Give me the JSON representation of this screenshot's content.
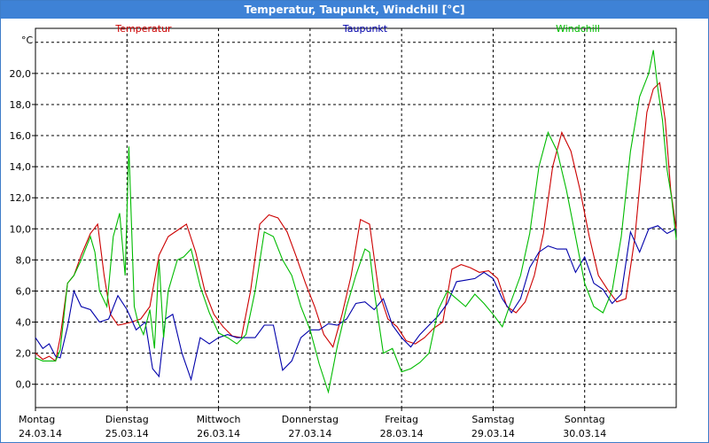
{
  "window": {
    "title": "Temperatur, Taupunkt, Windchill [°C]"
  },
  "chart_data": {
    "type": "line",
    "ylabel": "°C",
    "ylim": [
      -1.5,
      22.9
    ],
    "xlim": [
      0,
      7.0
    ],
    "grid": true,
    "legend_placement": "top",
    "yticks": [
      "0,0",
      "2,0",
      "4,0",
      "6,0",
      "8,0",
      "10,0",
      "12,0",
      "14,0",
      "16,0",
      "18,0",
      "20,0"
    ],
    "ytick_values": [
      0,
      2,
      4,
      6,
      8,
      10,
      12,
      14,
      16,
      18,
      20
    ],
    "day_ticks": [
      {
        "day": "Montag",
        "date": "24.03.14",
        "x": 0
      },
      {
        "day": "Dienstag",
        "date": "25.03.14",
        "x": 1
      },
      {
        "day": "Mittwoch",
        "date": "26.03.14",
        "x": 2
      },
      {
        "day": "Donnerstag",
        "date": "27.03.14",
        "x": 3
      },
      {
        "day": "Freitag",
        "date": "28.03.14",
        "x": 4
      },
      {
        "day": "Samstag",
        "date": "29.03.14",
        "x": 5
      },
      {
        "day": "Sonntag",
        "date": "30.03.14",
        "x": 6
      }
    ],
    "series": [
      {
        "name": "Temperatur",
        "color": "#cc0000",
        "x": [
          0,
          0.08,
          0.15,
          0.22,
          0.27,
          0.35,
          0.42,
          0.5,
          0.6,
          0.64,
          0.68,
          0.75,
          0.82,
          0.9,
          0.98,
          1.05,
          1.15,
          1.25,
          1.35,
          1.45,
          1.55,
          1.65,
          1.75,
          1.85,
          1.95,
          2.05,
          2.15,
          2.25,
          2.35,
          2.45,
          2.55,
          2.65,
          2.75,
          2.85,
          2.95,
          3.05,
          3.15,
          3.25,
          3.35,
          3.45,
          3.55,
          3.65,
          3.75,
          3.85,
          3.95,
          4.05,
          4.15,
          4.25,
          4.35,
          4.45,
          4.55,
          4.65,
          4.75,
          4.85,
          4.95,
          5.05,
          5.15,
          5.25,
          5.35,
          5.45,
          5.55,
          5.65,
          5.75,
          5.85,
          5.95,
          6.05,
          6.15,
          6.25,
          6.35,
          6.45,
          6.55,
          6.62,
          6.68,
          6.75,
          6.82,
          6.88,
          6.94,
          7.0
        ],
        "values": [
          2.0,
          1.6,
          1.8,
          1.5,
          3.0,
          6.5,
          7.0,
          8.3,
          9.7,
          10.0,
          10.3,
          7.0,
          4.5,
          3.8,
          3.9,
          4.0,
          4.2,
          5.0,
          8.3,
          9.5,
          9.9,
          10.3,
          8.5,
          6.0,
          4.5,
          3.7,
          3.1,
          3.0,
          6.0,
          10.3,
          10.9,
          10.7,
          9.8,
          8.2,
          6.5,
          5.0,
          3.2,
          2.4,
          4.5,
          7.0,
          10.6,
          10.3,
          6.0,
          4.2,
          3.7,
          2.8,
          2.6,
          3.0,
          3.6,
          4.0,
          7.4,
          7.7,
          7.5,
          7.2,
          7.3,
          6.8,
          5.0,
          4.6,
          5.3,
          7.0,
          9.7,
          14.0,
          16.2,
          15.0,
          12.5,
          9.5,
          7.0,
          6.1,
          5.3,
          5.5,
          9.5,
          14.0,
          17.5,
          19.0,
          19.4,
          17.0,
          12.5,
          10.0
        ]
      },
      {
        "name": "Taupunkt",
        "color": "#0000aa",
        "x": [
          0,
          0.08,
          0.15,
          0.22,
          0.27,
          0.35,
          0.42,
          0.5,
          0.6,
          0.7,
          0.8,
          0.9,
          1.0,
          1.1,
          1.2,
          1.28,
          1.35,
          1.42,
          1.5,
          1.6,
          1.7,
          1.8,
          1.9,
          2.0,
          2.1,
          2.2,
          2.3,
          2.4,
          2.5,
          2.6,
          2.7,
          2.8,
          2.9,
          3.0,
          3.1,
          3.2,
          3.3,
          3.4,
          3.5,
          3.6,
          3.7,
          3.8,
          3.9,
          4.0,
          4.1,
          4.2,
          4.3,
          4.4,
          4.5,
          4.6,
          4.7,
          4.8,
          4.9,
          5.0,
          5.1,
          5.2,
          5.3,
          5.4,
          5.5,
          5.6,
          5.7,
          5.8,
          5.9,
          6.0,
          6.1,
          6.2,
          6.3,
          6.4,
          6.5,
          6.6,
          6.7,
          6.8,
          6.9,
          7.0
        ],
        "values": [
          3.0,
          2.3,
          2.6,
          1.8,
          1.7,
          3.7,
          6.0,
          5.0,
          4.8,
          4.0,
          4.2,
          5.7,
          4.8,
          3.5,
          4.0,
          1.0,
          0.5,
          4.2,
          4.5,
          2.0,
          0.3,
          3.0,
          2.6,
          3.0,
          3.2,
          3.0,
          3.0,
          3.0,
          3.8,
          3.8,
          0.9,
          1.5,
          3.0,
          3.5,
          3.5,
          3.9,
          3.8,
          4.2,
          5.2,
          5.3,
          4.8,
          5.5,
          3.8,
          3.0,
          2.4,
          3.2,
          3.8,
          4.4,
          5.2,
          6.6,
          6.7,
          6.8,
          7.2,
          6.8,
          5.5,
          4.6,
          5.5,
          7.5,
          8.5,
          8.9,
          8.7,
          8.7,
          7.2,
          8.2,
          6.5,
          6.1,
          5.2,
          5.8,
          9.8,
          8.5,
          10.0,
          10.2,
          9.7,
          10.0
        ]
      },
      {
        "name": "Windchill",
        "color": "#00bb00",
        "x": [
          0,
          0.08,
          0.15,
          0.22,
          0.27,
          0.35,
          0.42,
          0.5,
          0.6,
          0.65,
          0.7,
          0.78,
          0.85,
          0.92,
          0.98,
          1.02,
          1.08,
          1.12,
          1.18,
          1.25,
          1.3,
          1.35,
          1.4,
          1.45,
          1.5,
          1.55,
          1.62,
          1.7,
          1.8,
          1.9,
          2.0,
          2.1,
          2.2,
          2.3,
          2.4,
          2.5,
          2.6,
          2.7,
          2.8,
          2.9,
          3.0,
          3.1,
          3.2,
          3.3,
          3.4,
          3.5,
          3.6,
          3.65,
          3.7,
          3.8,
          3.9,
          4.0,
          4.1,
          4.2,
          4.3,
          4.4,
          4.5,
          4.6,
          4.7,
          4.8,
          4.9,
          5.0,
          5.1,
          5.2,
          5.3,
          5.4,
          5.5,
          5.6,
          5.7,
          5.8,
          5.9,
          6.0,
          6.1,
          6.2,
          6.3,
          6.4,
          6.5,
          6.6,
          6.7,
          6.75,
          6.8,
          6.85,
          6.9,
          6.95,
          7.0
        ],
        "values": [
          1.7,
          1.5,
          1.5,
          1.5,
          2.2,
          6.5,
          7.0,
          8.0,
          9.5,
          8.5,
          6.0,
          5.0,
          9.5,
          11.0,
          7.0,
          15.3,
          5.0,
          4.0,
          3.2,
          4.8,
          2.3,
          8.0,
          3.0,
          6.0,
          7.0,
          8.0,
          8.2,
          8.7,
          6.3,
          4.6,
          3.3,
          3.0,
          2.6,
          3.2,
          6.0,
          9.8,
          9.5,
          8.0,
          7.0,
          5.0,
          3.5,
          1.3,
          -0.5,
          2.5,
          5.0,
          7.0,
          8.7,
          8.5,
          6.0,
          2.0,
          2.3,
          0.8,
          1.0,
          1.4,
          2.0,
          4.8,
          6.0,
          5.5,
          5.0,
          5.8,
          5.2,
          4.5,
          3.7,
          5.4,
          7.0,
          9.7,
          14.0,
          16.2,
          15.0,
          12.5,
          9.5,
          6.5,
          5.0,
          4.6,
          6.0,
          9.5,
          15.0,
          18.5,
          20.0,
          21.5,
          19.0,
          17.0,
          13.8,
          12.0,
          9.3
        ]
      }
    ]
  }
}
